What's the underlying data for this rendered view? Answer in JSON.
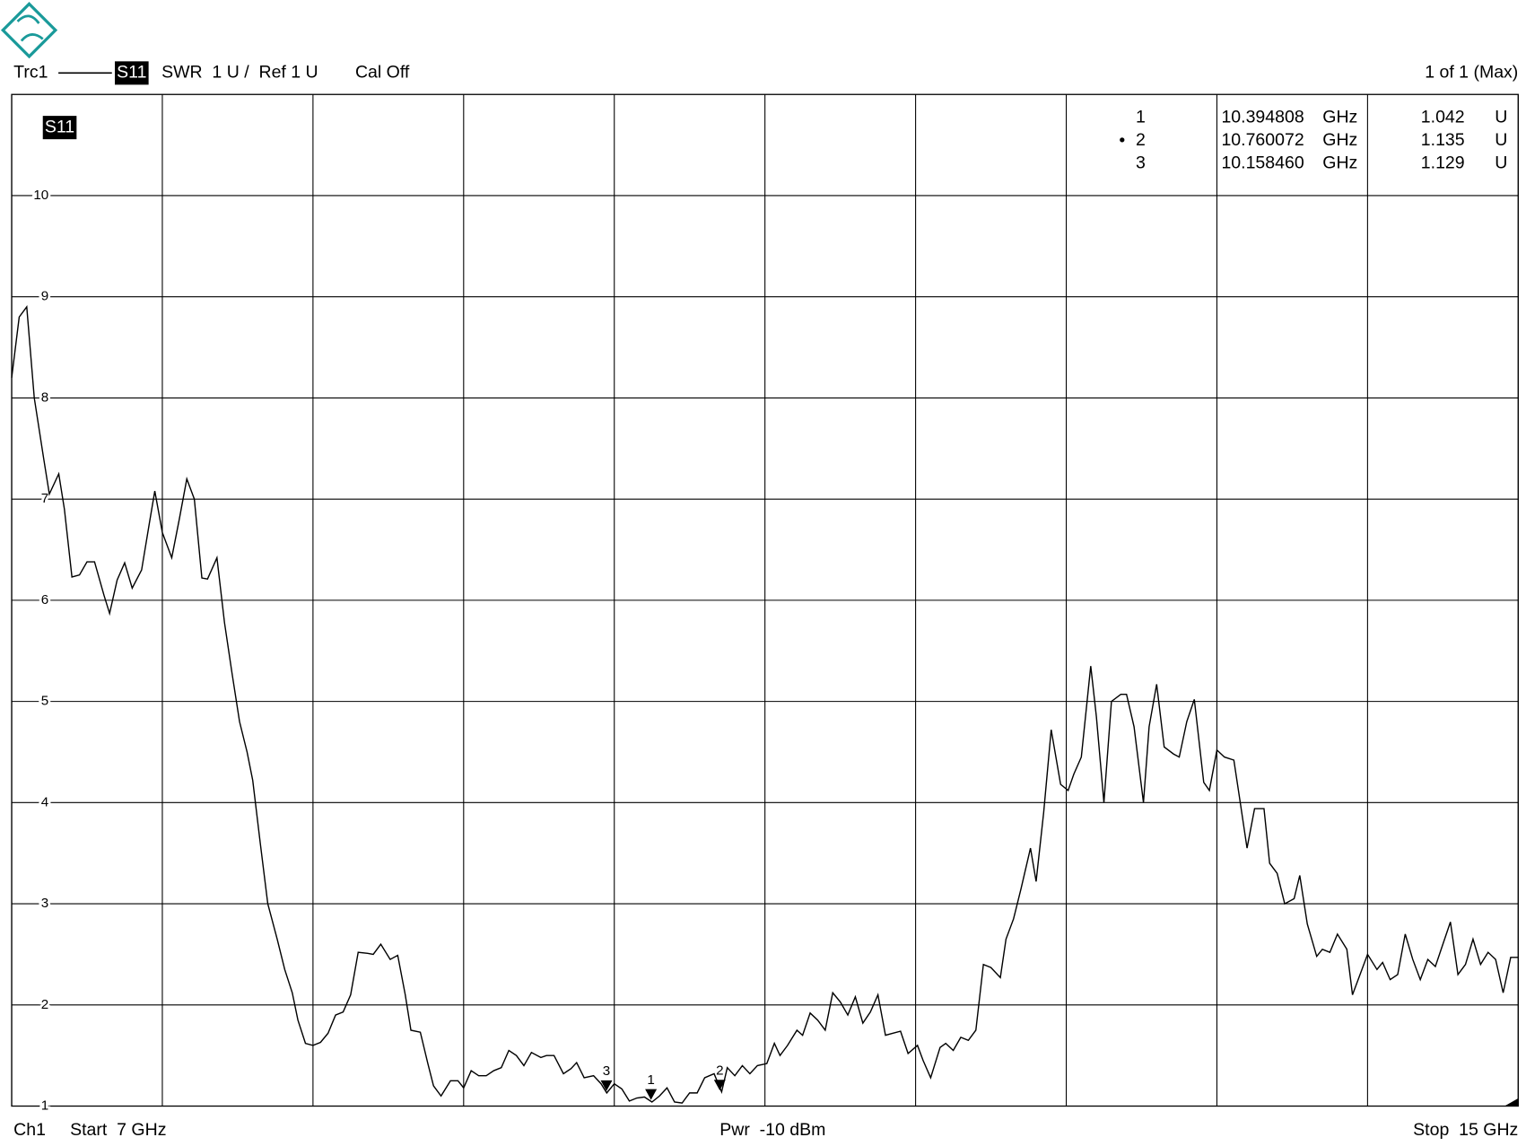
{
  "header": {
    "trace": "Trc1",
    "param": "S11",
    "format": "SWR  1 U /  Ref 1 U",
    "cal": "Cal Off",
    "page": "1 of 1 (Max)"
  },
  "footer": {
    "channel": "Ch1",
    "start": "Start  7 GHz",
    "power": "Pwr  -10 dBm",
    "stop": "Stop  15 GHz"
  },
  "chart_data": {
    "type": "line",
    "trace_label": "S11",
    "xlim": [
      7,
      15
    ],
    "ylim": [
      1,
      11
    ],
    "xticks": [
      7,
      7.8,
      8.6,
      9.4,
      10.2,
      11,
      11.8,
      12.6,
      13.4,
      14.2,
      15
    ],
    "yticks": [
      1,
      2,
      3,
      4,
      5,
      6,
      7,
      8,
      9,
      10
    ],
    "grid": true,
    "x": [
      7.0,
      7.04,
      7.08,
      7.12,
      7.17,
      7.2,
      7.25,
      7.28,
      7.32,
      7.36,
      7.4,
      7.44,
      7.49,
      7.52,
      7.56,
      7.6,
      7.64,
      7.69,
      7.73,
      7.76,
      7.8,
      7.85,
      7.89,
      7.93,
      7.97,
      8.01,
      8.04,
      8.09,
      8.13,
      8.17,
      8.21,
      8.25,
      8.28,
      8.32,
      8.36,
      8.41,
      8.45,
      8.49,
      8.52,
      8.56,
      8.6,
      8.64,
      8.68,
      8.72,
      8.76,
      8.8,
      8.84,
      8.89,
      8.92,
      8.96,
      9.01,
      9.05,
      9.09,
      9.12,
      9.17,
      9.21,
      9.24,
      9.28,
      9.33,
      9.37,
      9.4,
      9.44,
      9.48,
      9.52,
      9.56,
      9.6,
      9.64,
      9.68,
      9.72,
      9.76,
      9.81,
      9.84,
      9.88,
      9.93,
      9.97,
      10.0,
      10.04,
      10.09,
      10.13,
      10.16,
      10.2,
      10.24,
      10.28,
      10.32,
      10.36,
      10.4,
      10.44,
      10.48,
      10.52,
      10.56,
      10.6,
      10.64,
      10.68,
      10.73,
      10.77,
      10.8,
      10.84,
      10.88,
      10.92,
      10.96,
      11.01,
      11.05,
      11.08,
      11.12,
      11.17,
      11.2,
      11.24,
      11.28,
      11.32,
      11.36,
      11.4,
      11.44,
      11.48,
      11.52,
      11.56,
      11.6,
      11.64,
      11.68,
      11.72,
      11.76,
      11.81,
      11.84,
      11.88,
      11.93,
      11.96,
      12.0,
      12.04,
      12.08,
      12.12,
      12.16,
      12.2,
      12.25,
      12.28,
      12.32,
      12.36,
      12.41,
      12.44,
      12.48,
      12.52,
      12.57,
      12.61,
      12.64,
      12.68,
      12.73,
      12.76,
      12.8,
      12.84,
      12.89,
      12.92,
      12.96,
      13.01,
      13.04,
      13.08,
      13.12,
      13.17,
      13.2,
      13.24,
      13.28,
      13.33,
      13.36,
      13.4,
      13.44,
      13.49,
      13.52,
      13.56,
      13.6,
      13.65,
      13.68,
      13.72,
      13.76,
      13.81,
      13.84,
      13.88,
      13.93,
      13.96,
      14.0,
      14.04,
      14.09,
      14.12,
      14.16,
      14.2,
      14.25,
      14.28,
      14.32,
      14.36,
      14.4,
      14.44,
      14.48,
      14.52,
      14.56,
      14.6,
      14.64,
      14.68,
      14.72,
      14.76,
      14.8,
      14.84,
      14.88,
      14.92,
      14.96,
      15.0
    ],
    "series": [
      {
        "name": "Trc1",
        "color": "#000000",
        "values": [
          8.2,
          8.8,
          8.9,
          8.0,
          7.4,
          7.05,
          7.25,
          6.9,
          6.23,
          6.25,
          6.38,
          6.38,
          6.05,
          5.87,
          6.2,
          6.37,
          6.12,
          6.3,
          6.75,
          7.08,
          6.67,
          6.42,
          6.8,
          7.2,
          7.0,
          6.22,
          6.21,
          6.42,
          5.78,
          5.28,
          4.8,
          4.5,
          4.22,
          3.6,
          3.0,
          2.65,
          2.35,
          2.12,
          1.85,
          1.62,
          1.6,
          1.63,
          1.72,
          1.9,
          1.93,
          2.1,
          2.52,
          2.51,
          2.5,
          2.6,
          2.45,
          2.49,
          2.1,
          1.75,
          1.73,
          1.42,
          1.2,
          1.1,
          1.25,
          1.25,
          1.18,
          1.35,
          1.3,
          1.3,
          1.35,
          1.38,
          1.55,
          1.5,
          1.4,
          1.53,
          1.48,
          1.5,
          1.5,
          1.32,
          1.37,
          1.43,
          1.28,
          1.3,
          1.22,
          1.13,
          1.22,
          1.17,
          1.05,
          1.08,
          1.09,
          1.04,
          1.1,
          1.18,
          1.04,
          1.03,
          1.13,
          1.13,
          1.28,
          1.32,
          1.14,
          1.38,
          1.3,
          1.4,
          1.32,
          1.4,
          1.42,
          1.62,
          1.5,
          1.6,
          1.75,
          1.7,
          1.92,
          1.85,
          1.75,
          2.12,
          2.03,
          1.9,
          2.08,
          1.82,
          1.93,
          2.1,
          1.7,
          1.72,
          1.74,
          1.52,
          1.6,
          1.45,
          1.28,
          1.58,
          1.62,
          1.55,
          1.68,
          1.65,
          1.75,
          2.4,
          2.37,
          2.27,
          2.65,
          2.85,
          3.15,
          3.55,
          3.22,
          3.9,
          4.72,
          4.18,
          4.12,
          4.28,
          4.45,
          5.35,
          4.85,
          4.0,
          5.0,
          5.07,
          5.07,
          4.75,
          4.0,
          4.75,
          5.17,
          4.55,
          4.48,
          4.45,
          4.8,
          5.02,
          4.2,
          4.12,
          4.52,
          4.45,
          4.42,
          4.05,
          3.55,
          3.94,
          3.94,
          3.4,
          3.3,
          3.0,
          3.05,
          3.28,
          2.8,
          2.48,
          2.55,
          2.52,
          2.7,
          2.55,
          2.1,
          2.3,
          2.5,
          2.35,
          2.42,
          2.25,
          2.3,
          2.7,
          2.45,
          2.25,
          2.45,
          2.38,
          2.6,
          2.82,
          2.3,
          2.4,
          2.65,
          2.4,
          2.52,
          2.45,
          2.12,
          2.47,
          2.47
        ]
      }
    ],
    "markers": {
      "labels": [
        "1",
        "2",
        "3"
      ],
      "active": "•",
      "x": [
        10.394808,
        10.760072,
        10.15846
      ],
      "x_labels": [
        "10.394808",
        "10.760072",
        "10.158460"
      ],
      "x_unit": "GHz",
      "values": [
        1.042,
        1.135,
        1.129
      ],
      "value_unit": "U"
    }
  }
}
